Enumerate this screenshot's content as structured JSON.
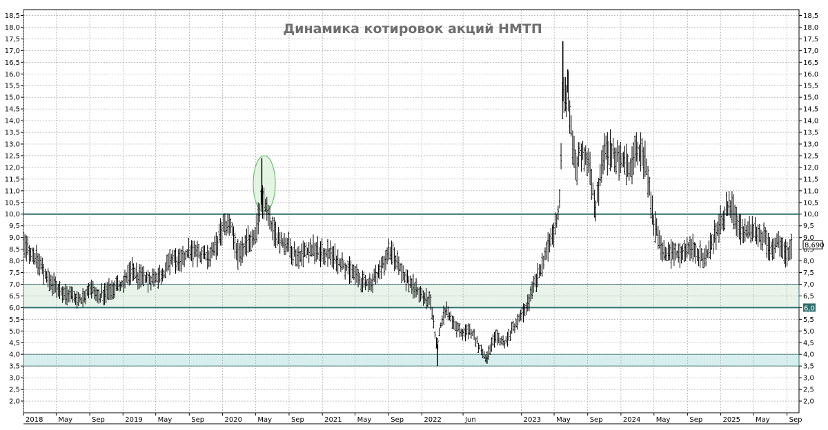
{
  "chart_data": {
    "type": "ohlc",
    "title": "Динамика котировок акций НМТП",
    "xlabel": "",
    "ylabel": "",
    "ylim": [
      1.5,
      18.75
    ],
    "y_ticks": [
      "2,0",
      "2,5",
      "3,0",
      "3,5",
      "4,0",
      "4,5",
      "5,0",
      "5,5",
      "6,0",
      "6,5",
      "7,0",
      "7,5",
      "8,0",
      "8,5",
      "9,0",
      "9,5",
      "10,0",
      "10,5",
      "11,0",
      "11,5",
      "12,0",
      "12,5",
      "13,0",
      "13,5",
      "14,0",
      "14,5",
      "15,0",
      "15,5",
      "16,0",
      "16,5",
      "17,0",
      "17,5",
      "18,0",
      "18,5"
    ],
    "x_range": [
      "2018-01-01",
      "2025-10-15"
    ],
    "x_ticks": [
      {
        "date": "2018-01-01",
        "label": "2018"
      },
      {
        "date": "2018-05-01",
        "label": "May"
      },
      {
        "date": "2018-09-01",
        "label": "Sep"
      },
      {
        "date": "2019-01-01",
        "label": "2019"
      },
      {
        "date": "2019-05-01",
        "label": "May"
      },
      {
        "date": "2019-09-01",
        "label": "Sep"
      },
      {
        "date": "2020-01-01",
        "label": "2020"
      },
      {
        "date": "2020-05-01",
        "label": "May"
      },
      {
        "date": "2020-09-01",
        "label": "Sep"
      },
      {
        "date": "2021-01-01",
        "label": "2021"
      },
      {
        "date": "2021-05-01",
        "label": "May"
      },
      {
        "date": "2021-09-01",
        "label": "Sep"
      },
      {
        "date": "2022-01-01",
        "label": "2022"
      },
      {
        "date": "2022-06-01",
        "label": "Jun"
      },
      {
        "date": "2023-01-01",
        "label": "2023"
      },
      {
        "date": "2023-05-01",
        "label": "May"
      },
      {
        "date": "2023-09-01",
        "label": "Sep"
      },
      {
        "date": "2024-01-01",
        "label": "2024"
      },
      {
        "date": "2024-05-01",
        "label": "May"
      },
      {
        "date": "2024-09-01",
        "label": "Sep"
      },
      {
        "date": "2025-01-01",
        "label": "2025"
      },
      {
        "date": "2025-05-01",
        "label": "May"
      },
      {
        "date": "2025-09-01",
        "label": "Sep"
      }
    ],
    "price_path": [
      {
        "date": "2018-01-01",
        "value": 8.7
      },
      {
        "date": "2018-02-01",
        "value": 8.3
      },
      {
        "date": "2018-03-01",
        "value": 7.9
      },
      {
        "date": "2018-04-01",
        "value": 7.2
      },
      {
        "date": "2018-05-01",
        "value": 6.9
      },
      {
        "date": "2018-06-01",
        "value": 6.6
      },
      {
        "date": "2018-07-01",
        "value": 6.5
      },
      {
        "date": "2018-08-01",
        "value": 6.3
      },
      {
        "date": "2018-09-01",
        "value": 6.9
      },
      {
        "date": "2018-10-01",
        "value": 6.4
      },
      {
        "date": "2018-11-01",
        "value": 6.7
      },
      {
        "date": "2018-12-01",
        "value": 6.9
      },
      {
        "date": "2019-01-01",
        "value": 7.0
      },
      {
        "date": "2019-02-01",
        "value": 7.6
      },
      {
        "date": "2019-03-01",
        "value": 7.3
      },
      {
        "date": "2019-04-01",
        "value": 7.2
      },
      {
        "date": "2019-05-01",
        "value": 7.3
      },
      {
        "date": "2019-06-01",
        "value": 7.5
      },
      {
        "date": "2019-07-01",
        "value": 8.1
      },
      {
        "date": "2019-08-01",
        "value": 7.9
      },
      {
        "date": "2019-09-01",
        "value": 8.4
      },
      {
        "date": "2019-10-01",
        "value": 8.3
      },
      {
        "date": "2019-11-01",
        "value": 8.2
      },
      {
        "date": "2019-12-01",
        "value": 8.4
      },
      {
        "date": "2020-01-01",
        "value": 9.4
      },
      {
        "date": "2020-02-01",
        "value": 9.5
      },
      {
        "date": "2020-03-01",
        "value": 8.1
      },
      {
        "date": "2020-04-01",
        "value": 8.8
      },
      {
        "date": "2020-05-01",
        "value": 9.2
      },
      {
        "date": "2020-05-20",
        "value": 10.3
      },
      {
        "date": "2020-06-01",
        "value": 10.6
      },
      {
        "date": "2020-06-15",
        "value": 9.9
      },
      {
        "date": "2020-07-01",
        "value": 9.3
      },
      {
        "date": "2020-08-01",
        "value": 8.9
      },
      {
        "date": "2020-09-01",
        "value": 8.6
      },
      {
        "date": "2020-10-01",
        "value": 8.2
      },
      {
        "date": "2020-11-01",
        "value": 8.4
      },
      {
        "date": "2020-12-01",
        "value": 8.5
      },
      {
        "date": "2021-01-01",
        "value": 8.3
      },
      {
        "date": "2021-02-01",
        "value": 8.3
      },
      {
        "date": "2021-03-01",
        "value": 8.0
      },
      {
        "date": "2021-04-01",
        "value": 7.7
      },
      {
        "date": "2021-05-01",
        "value": 7.4
      },
      {
        "date": "2021-06-01",
        "value": 7.0
      },
      {
        "date": "2021-07-01",
        "value": 7.1
      },
      {
        "date": "2021-08-01",
        "value": 7.6
      },
      {
        "date": "2021-09-01",
        "value": 8.4
      },
      {
        "date": "2021-10-01",
        "value": 8.0
      },
      {
        "date": "2021-11-01",
        "value": 7.3
      },
      {
        "date": "2021-12-01",
        "value": 6.9
      },
      {
        "date": "2022-01-01",
        "value": 6.5
      },
      {
        "date": "2022-02-01",
        "value": 6.2
      },
      {
        "date": "2022-02-25",
        "value": 4.3
      },
      {
        "date": "2022-03-15",
        "value": 5.5
      },
      {
        "date": "2022-04-01",
        "value": 5.9
      },
      {
        "date": "2022-05-01",
        "value": 5.2
      },
      {
        "date": "2022-06-01",
        "value": 4.9
      },
      {
        "date": "2022-07-01",
        "value": 5.0
      },
      {
        "date": "2022-08-01",
        "value": 4.3
      },
      {
        "date": "2022-08-25",
        "value": 3.8
      },
      {
        "date": "2022-09-15",
        "value": 4.5
      },
      {
        "date": "2022-10-01",
        "value": 4.7
      },
      {
        "date": "2022-11-01",
        "value": 4.5
      },
      {
        "date": "2022-12-01",
        "value": 5.1
      },
      {
        "date": "2023-01-01",
        "value": 5.6
      },
      {
        "date": "2023-02-01",
        "value": 6.4
      },
      {
        "date": "2023-03-01",
        "value": 7.3
      },
      {
        "date": "2023-04-01",
        "value": 8.3
      },
      {
        "date": "2023-05-01",
        "value": 9.3
      },
      {
        "date": "2023-05-20",
        "value": 10.2
      },
      {
        "date": "2023-06-01",
        "value": 14.8
      },
      {
        "date": "2023-06-20",
        "value": 15.2
      },
      {
        "date": "2023-07-01",
        "value": 13.8
      },
      {
        "date": "2023-07-20",
        "value": 11.7
      },
      {
        "date": "2023-08-01",
        "value": 12.8
      },
      {
        "date": "2023-09-01",
        "value": 12.4
      },
      {
        "date": "2023-10-01",
        "value": 10.3
      },
      {
        "date": "2023-11-01",
        "value": 12.6
      },
      {
        "date": "2023-12-01",
        "value": 12.7
      },
      {
        "date": "2024-01-01",
        "value": 12.3
      },
      {
        "date": "2024-02-01",
        "value": 12.0
      },
      {
        "date": "2024-03-01",
        "value": 12.6
      },
      {
        "date": "2024-04-01",
        "value": 12.4
      },
      {
        "date": "2024-04-20",
        "value": 10.4
      },
      {
        "date": "2024-05-01",
        "value": 9.6
      },
      {
        "date": "2024-06-01",
        "value": 8.5
      },
      {
        "date": "2024-07-01",
        "value": 8.3
      },
      {
        "date": "2024-08-01",
        "value": 8.3
      },
      {
        "date": "2024-09-01",
        "value": 8.6
      },
      {
        "date": "2024-10-01",
        "value": 8.5
      },
      {
        "date": "2024-11-01",
        "value": 8.0
      },
      {
        "date": "2024-12-01",
        "value": 8.8
      },
      {
        "date": "2025-01-01",
        "value": 9.7
      },
      {
        "date": "2025-02-01",
        "value": 10.4
      },
      {
        "date": "2025-02-20",
        "value": 10.1
      },
      {
        "date": "2025-03-01",
        "value": 9.5
      },
      {
        "date": "2025-04-01",
        "value": 9.2
      },
      {
        "date": "2025-05-01",
        "value": 9.3
      },
      {
        "date": "2025-06-01",
        "value": 9.1
      },
      {
        "date": "2025-07-01",
        "value": 8.5
      },
      {
        "date": "2025-08-01",
        "value": 8.8
      },
      {
        "date": "2025-09-01",
        "value": 8.3
      },
      {
        "date": "2025-09-20",
        "value": 8.69
      }
    ],
    "highs": [
      {
        "date": "2020-05-24",
        "value": 12.4
      },
      {
        "date": "2022-02-27",
        "value": 3.5
      },
      {
        "date": "2022-08-28",
        "value": 3.6
      },
      {
        "date": "2023-06-02",
        "value": 17.4
      },
      {
        "date": "2023-06-20",
        "value": 16.2
      }
    ],
    "support_lines": [
      10.0,
      6.0
    ],
    "bands": [
      {
        "from": 6.0,
        "to": 7.0
      },
      {
        "from": 3.5,
        "to": 4.0
      }
    ],
    "last_price_label": "8,690",
    "level_label": "6,0",
    "colors": {
      "bars": "#000000",
      "support_line": "#2f6f6f",
      "band_upper": "#e8f3ea",
      "band_lower": "#d6eeee",
      "ellipse_stroke": "#6cc06c",
      "ellipse_fill": "#dff2dd",
      "level_label_bg": "#2f6f6f"
    }
  }
}
